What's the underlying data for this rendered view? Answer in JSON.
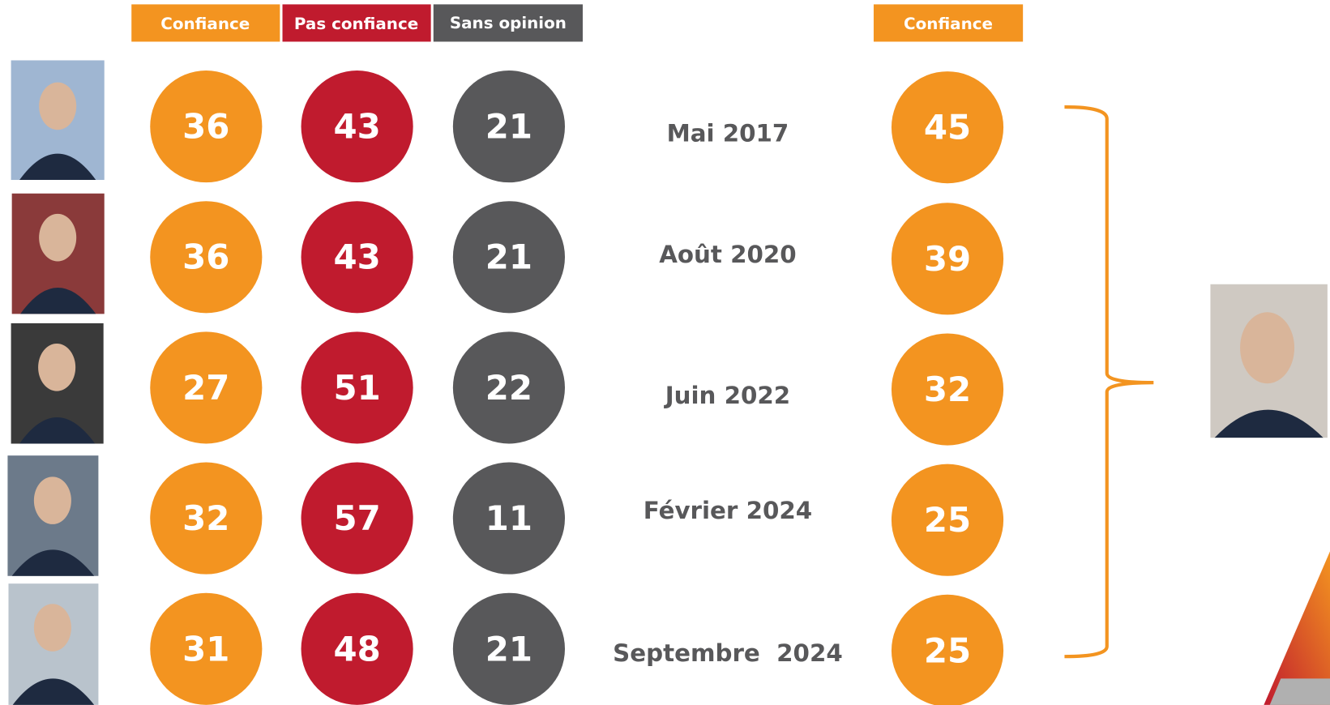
{
  "headers": [
    "Confiance",
    "Pas confiance",
    "Sans opinion"
  ],
  "right_header": "Confiance",
  "rows": [
    {
      "confiance": 36,
      "pas_confiance": 43,
      "sans_opinion": 21,
      "date": "Mai 2017",
      "president_confiance": 45
    },
    {
      "confiance": 36,
      "pas_confiance": 43,
      "sans_opinion": 21,
      "date": "Août 2020",
      "president_confiance": 39
    },
    {
      "confiance": 27,
      "pas_confiance": 51,
      "sans_opinion": 22,
      "date": "Juin 2022",
      "president_confiance": 32
    },
    {
      "confiance": 32,
      "pas_confiance": 57,
      "sans_opinion": 11,
      "date": "Février 2024",
      "president_confiance": 25
    },
    {
      "confiance": 31,
      "pas_confiance": 48,
      "sans_opinion": 21,
      "date": "Septembre  2024",
      "president_confiance": 25
    }
  ]
}
